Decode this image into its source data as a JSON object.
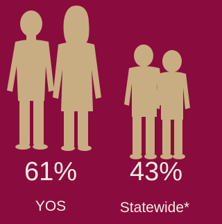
{
  "items": [
    {
      "value": "61%",
      "label": "YOS"
    },
    {
      "value": "43%",
      "label": "Statewide*"
    }
  ]
}
